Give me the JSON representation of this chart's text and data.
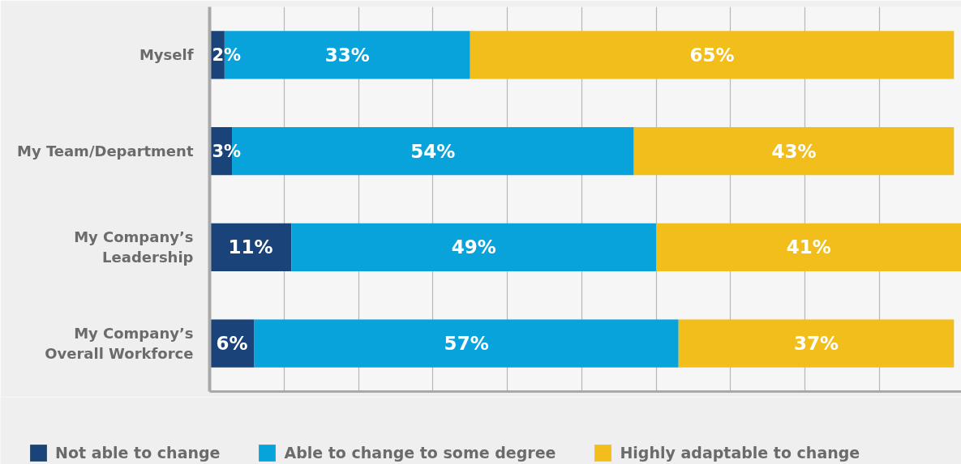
{
  "chart_data": {
    "type": "bar",
    "orientation": "horizontal",
    "stacked": true,
    "categories": [
      "Myself",
      "My Team/Department",
      "My Company’s\nLeadership",
      "My Company’s\nOverall Workforce"
    ],
    "series": [
      {
        "name": "Not able to change",
        "color": "#1a4479",
        "values": [
          2,
          3,
          11,
          6
        ],
        "value_labels": [
          "2%",
          "3%",
          "11%",
          "6%"
        ]
      },
      {
        "name": "Able to change to some degree",
        "color": "#09a3dc",
        "values": [
          33,
          54,
          49,
          57
        ],
        "value_labels": [
          "33%",
          "54%",
          "49%",
          "57%"
        ]
      },
      {
        "name": "Highly adaptable to change",
        "color": "#f1be1b",
        "values": [
          65,
          43,
          41,
          37
        ],
        "value_labels": [
          "65%",
          "43%",
          "41%",
          "37%"
        ]
      }
    ],
    "xlim": [
      0,
      101
    ],
    "xticks": [
      {
        "value": 10,
        "label": null
      },
      {
        "value": 20,
        "label": null
      },
      {
        "value": 30,
        "label": null
      },
      {
        "value": 40,
        "label": null
      },
      {
        "value": 50,
        "label": null
      },
      {
        "value": 60,
        "label": null
      },
      {
        "value": 70,
        "label": null
      },
      {
        "value": 80,
        "label": null
      },
      {
        "value": 90,
        "label": null
      }
    ],
    "grid": "x",
    "legend": "bottom",
    "tick_labels": "y"
  }
}
